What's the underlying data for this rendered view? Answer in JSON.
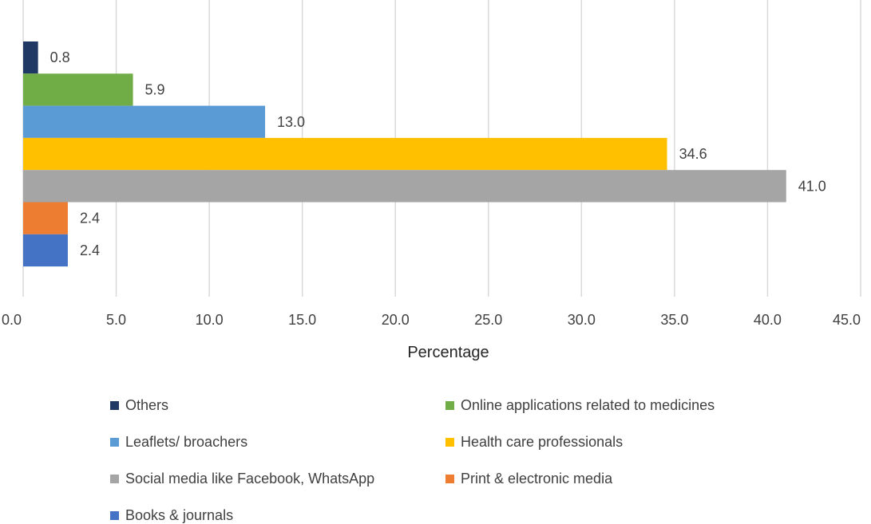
{
  "chart_data": {
    "type": "bar",
    "orientation": "horizontal",
    "xlabel": "Percentage",
    "ylabel": "",
    "xlim": [
      0,
      45
    ],
    "x_ticks": [
      "0.0",
      "5.0",
      "10.0",
      "15.0",
      "20.0",
      "25.0",
      "30.0",
      "35.0",
      "40.0",
      "45.0"
    ],
    "grid": true,
    "legend_position": "bottom",
    "series": [
      {
        "name": "Others",
        "value": 0.8,
        "label": "0.8",
        "color": "#1F3864"
      },
      {
        "name": "Online applications related to medicines",
        "value": 5.9,
        "label": "5.9",
        "color": "#70AD47"
      },
      {
        "name": "Leaflets/ broachers",
        "value": 13.0,
        "label": "13.0",
        "color": "#5B9BD5"
      },
      {
        "name": "Health care professionals",
        "value": 34.6,
        "label": "34.6",
        "color": "#FFC000"
      },
      {
        "name": "Social media like Facebook, WhatsApp",
        "value": 41.0,
        "label": "41.0",
        "color": "#A5A5A5"
      },
      {
        "name": "Print & electronic media",
        "value": 2.4,
        "label": "2.4",
        "color": "#ED7D31"
      },
      {
        "name": "Books & journals",
        "value": 2.4,
        "label": "2.4",
        "color": "#4472C4"
      }
    ]
  }
}
